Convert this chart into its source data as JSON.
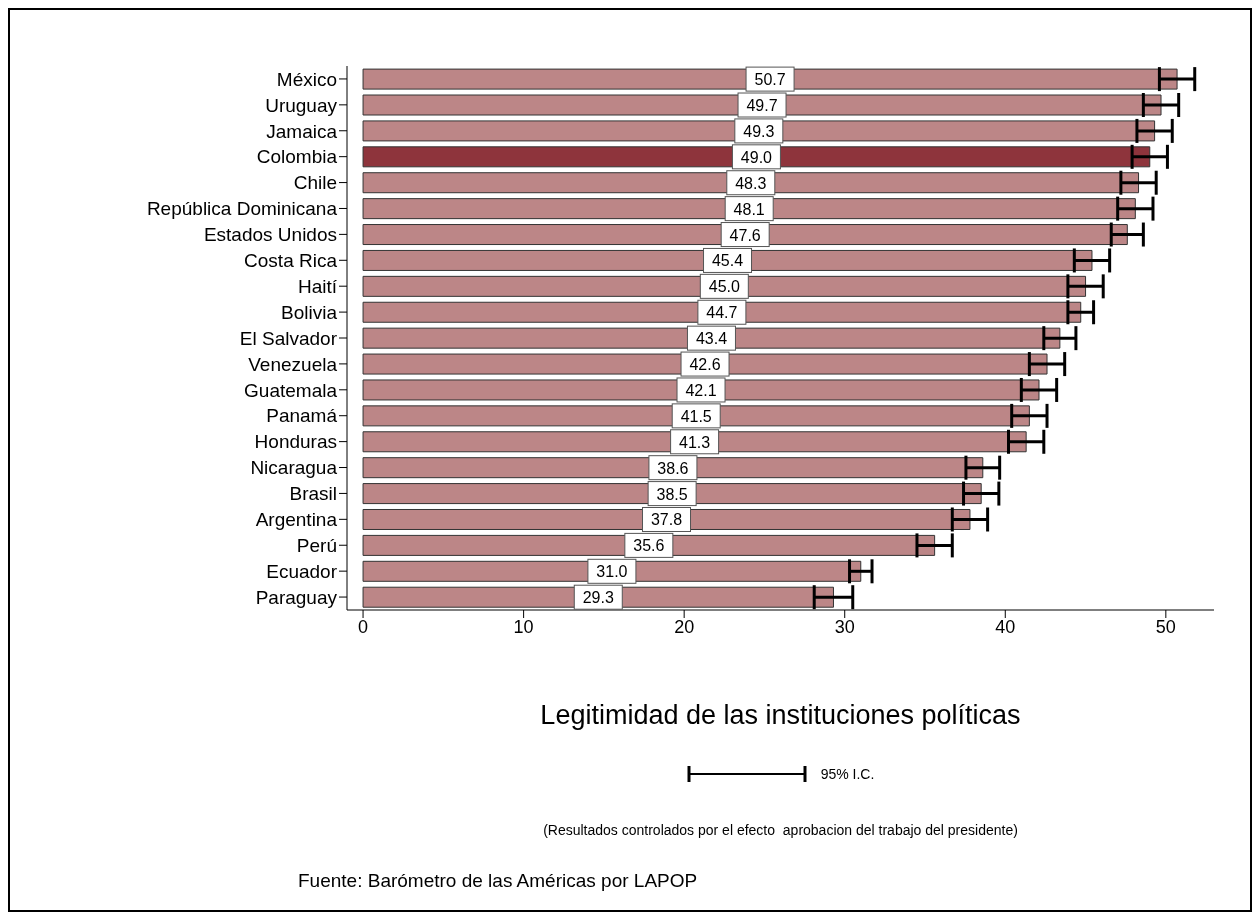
{
  "chart_data": {
    "type": "bar",
    "orientation": "horizontal",
    "categories": [
      "México",
      "Uruguay",
      "Jamaica",
      "Colombia",
      "Chile",
      "República Dominicana",
      "Estados Unidos",
      "Costa Rica",
      "Haití",
      "Bolivia",
      "El Salvador",
      "Venezuela",
      "Guatemala",
      "Panamá",
      "Honduras",
      "Nicaragua",
      "Brasil",
      "Argentina",
      "Perú",
      "Ecuador",
      "Paraguay"
    ],
    "values": [
      50.7,
      49.7,
      49.3,
      49.0,
      48.3,
      48.1,
      47.6,
      45.4,
      45.0,
      44.7,
      43.4,
      42.6,
      42.1,
      41.5,
      41.3,
      38.6,
      38.5,
      37.8,
      35.6,
      31.0,
      29.3
    ],
    "errors": [
      1.1,
      1.1,
      1.1,
      1.1,
      1.1,
      1.1,
      1.0,
      1.1,
      1.1,
      0.8,
      1.0,
      1.1,
      1.1,
      1.1,
      1.1,
      1.05,
      1.1,
      1.1,
      1.1,
      0.7,
      1.2
    ],
    "colors": [
      "#bc8687",
      "#bc8687",
      "#bc8687",
      "#8e343c",
      "#bc8687",
      "#bc8687",
      "#bc8687",
      "#bc8687",
      "#bc8687",
      "#bc8687",
      "#bc8687",
      "#bc8687",
      "#bc8687",
      "#bc8687",
      "#bc8687",
      "#bc8687",
      "#bc8687",
      "#bc8687",
      "#bc8687",
      "#bc8687",
      "#bc8687"
    ],
    "value_labels": [
      "50.7",
      "49.7",
      "49.3",
      "49.0",
      "48.3",
      "48.1",
      "47.6",
      "45.4",
      "45.0",
      "44.7",
      "43.4",
      "42.6",
      "42.1",
      "41.5",
      "41.3",
      "38.6",
      "38.5",
      "37.8",
      "35.6",
      "31.0",
      "29.3"
    ],
    "xlim": [
      -1,
      53
    ],
    "xticks": [
      0,
      10,
      20,
      30,
      40,
      50
    ],
    "xlabel": "Legitimidad de las instituciones políticas",
    "annotations": [
      "95% I.C.",
      "(Resultados controlados por el efecto  aprobacion del trabajo del presidente)",
      "Fuente: Barómetro de las Américas por LAPOP"
    ]
  }
}
